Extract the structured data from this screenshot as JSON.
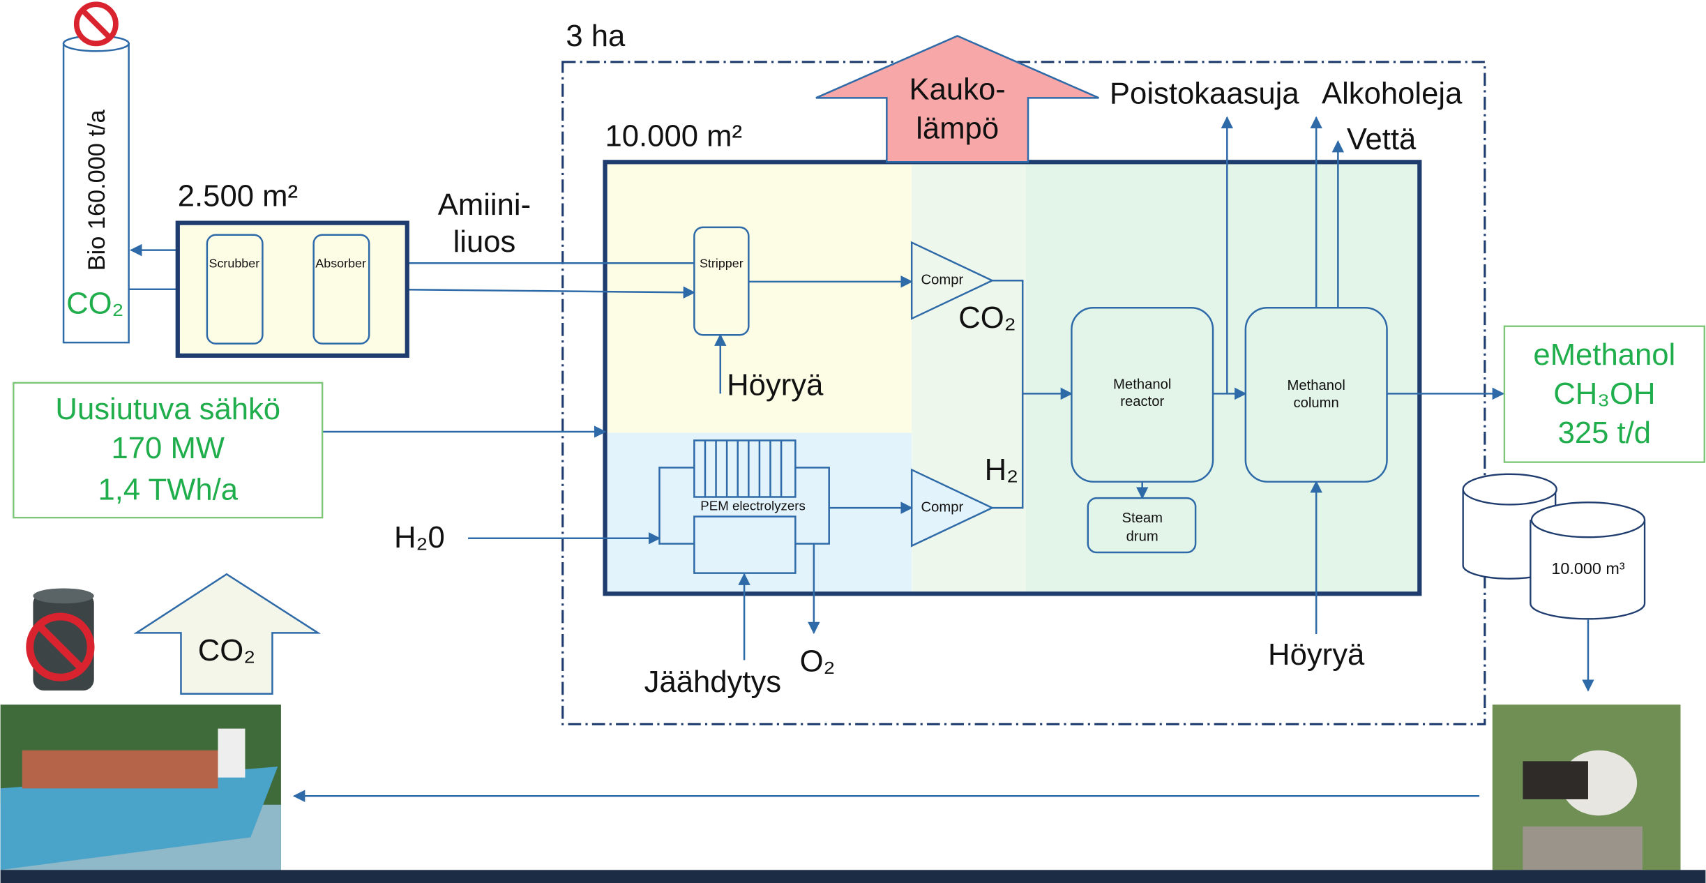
{
  "site": {
    "area": "3 ha",
    "plant_area": "10.000 m²",
    "capture_area": "2.500 m²"
  },
  "source": {
    "stack": "Bio 160.000 t/a",
    "gas": "CO₂"
  },
  "capture": {
    "solvent": [
      "Amiini-",
      "liuos"
    ],
    "units": [
      "Scrubber",
      "Absorber",
      "Stripper"
    ]
  },
  "plant": {
    "compressors": [
      "Compr",
      "Compr"
    ],
    "co2": "CO₂",
    "h2": "H₂",
    "steam_in": "Höyryä",
    "electrolyzer": "PEM electrolyzers",
    "reactor": [
      "Methanol",
      "reactor"
    ],
    "drum": [
      "Steam",
      "drum"
    ],
    "column": [
      "Methanol",
      "column"
    ],
    "steam_in_2": "Höyryä",
    "water_in": "H₂0",
    "cooling": "Jäähdytys",
    "oxygen": "O₂"
  },
  "outputs": {
    "heat": [
      "Kauko-",
      "lämpö"
    ],
    "offgas": "Poistokaasuja",
    "alcohols": "Alkoholeja",
    "water": "Vettä",
    "product": [
      "eMethanol",
      "CH₃OH",
      "325 t/d"
    ],
    "storage": "10.000 m³"
  },
  "power": [
    "Uusiutuva sähkö",
    "170 MW",
    "1,4 TWh/a"
  ],
  "emissions": {
    "co2": "CO₂"
  }
}
